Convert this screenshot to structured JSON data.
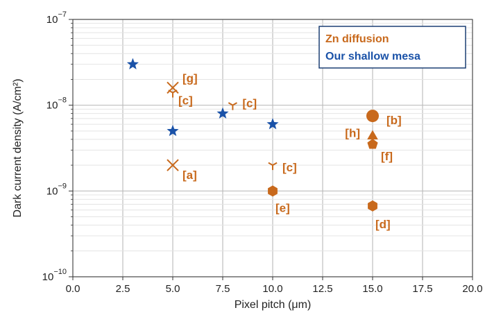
{
  "chart_data": {
    "type": "scatter",
    "title": "",
    "xlabel": "Pixel pitch (μm)",
    "ylabel": "Dark current density (A/cm²)",
    "xlim": [
      0,
      20
    ],
    "ylim": [
      1e-10,
      1e-07
    ],
    "y_scale": "log",
    "grid": true,
    "x_ticks": [
      "0.0",
      "2.5",
      "5.0",
      "7.5",
      "10.0",
      "12.5",
      "15.0",
      "17.5",
      "20.0"
    ],
    "y_ticks": [
      {
        "base": "10",
        "exp": "−10",
        "value": 1e-10
      },
      {
        "base": "10",
        "exp": "−9",
        "value": 1e-09
      },
      {
        "base": "10",
        "exp": "−8",
        "value": 1e-08
      },
      {
        "base": "10",
        "exp": "−7",
        "value": 1e-07
      }
    ],
    "legend": {
      "placement": "top-right",
      "entries": [
        {
          "label": "Zn diffusion",
          "color": "#c8691c"
        },
        {
          "label": "Our shallow mesa",
          "color": "#1a52a8"
        }
      ]
    },
    "series": [
      {
        "name": "Zn diffusion",
        "color": "#c8691c",
        "points": [
          {
            "x": 5,
            "y": 1.6e-08,
            "marker": "x",
            "label": "[g]"
          },
          {
            "x": 5,
            "y": 1.4e-08,
            "marker": "tri",
            "label": "[c]"
          },
          {
            "x": 5,
            "y": 2e-09,
            "marker": "x",
            "label": "[a]"
          },
          {
            "x": 8,
            "y": 1e-08,
            "marker": "tri",
            "label": "[c]"
          },
          {
            "x": 10,
            "y": 2e-09,
            "marker": "tri",
            "label": "[c]"
          },
          {
            "x": 10,
            "y": 1e-09,
            "marker": "hexagon",
            "label": "[e]"
          },
          {
            "x": 15,
            "y": 7.5e-09,
            "marker": "circle",
            "label": "[b]"
          },
          {
            "x": 15,
            "y": 4.5e-09,
            "marker": "triangle-up",
            "label": "[h]"
          },
          {
            "x": 15,
            "y": 3.5e-09,
            "marker": "pentagon",
            "label": "[f]"
          },
          {
            "x": 15,
            "y": 6.7e-10,
            "marker": "hexagon",
            "label": "[d]"
          }
        ]
      },
      {
        "name": "Our shallow mesa",
        "color": "#1a52a8",
        "points": [
          {
            "x": 3,
            "y": 3e-08,
            "marker": "star"
          },
          {
            "x": 5,
            "y": 5e-09,
            "marker": "star"
          },
          {
            "x": 7.5,
            "y": 8e-09,
            "marker": "star"
          },
          {
            "x": 10,
            "y": 6e-09,
            "marker": "star"
          }
        ]
      }
    ]
  }
}
